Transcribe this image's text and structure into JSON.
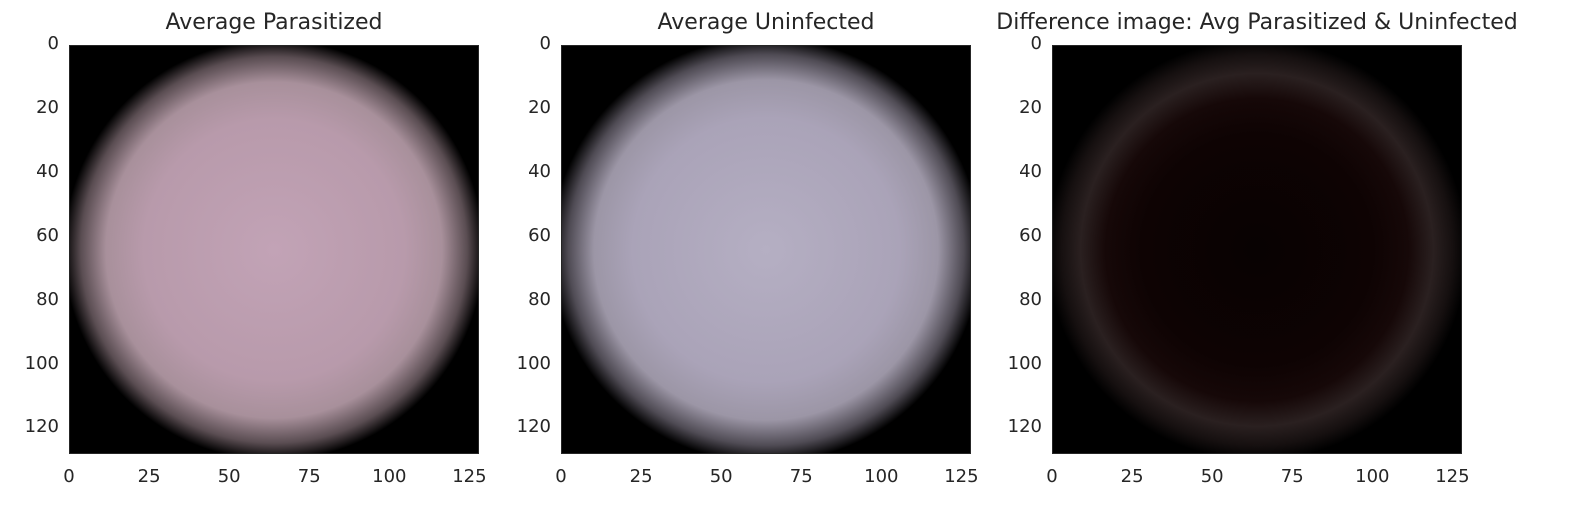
{
  "chart_data": [
    {
      "type": "heatmap",
      "title": "Average Parasitized",
      "xlim": [
        0,
        128
      ],
      "ylim": [
        128,
        0
      ],
      "xticks": [
        "0",
        "25",
        "50",
        "75",
        "100",
        "125"
      ],
      "yticks": [
        "0",
        "20",
        "40",
        "60",
        "80",
        "100",
        "120"
      ],
      "colors": {
        "background": "#000000",
        "cell": "#b89aab",
        "cell_center": "#c2a3b6"
      }
    },
    {
      "type": "heatmap",
      "title": "Average Uninfected",
      "xlim": [
        0,
        128
      ],
      "ylim": [
        128,
        0
      ],
      "xticks": [
        "0",
        "25",
        "50",
        "75",
        "100",
        "125"
      ],
      "yticks": [
        "0",
        "20",
        "40",
        "60",
        "80",
        "100",
        "120"
      ],
      "colors": {
        "background": "#000000",
        "cell": "#aaa3b8",
        "cell_center": "#b3adc2"
      }
    },
    {
      "type": "heatmap",
      "title": "Difference image: Avg Parasitized & Uninfected",
      "xlim": [
        0,
        128
      ],
      "ylim": [
        128,
        0
      ],
      "xticks": [
        "0",
        "25",
        "50",
        "75",
        "100",
        "125"
      ],
      "yticks": [
        "0",
        "20",
        "40",
        "60",
        "80",
        "100",
        "120"
      ],
      "colors": {
        "background": "#000000",
        "cell": "#0e0303",
        "cell_edge": "#2a2020"
      }
    }
  ]
}
